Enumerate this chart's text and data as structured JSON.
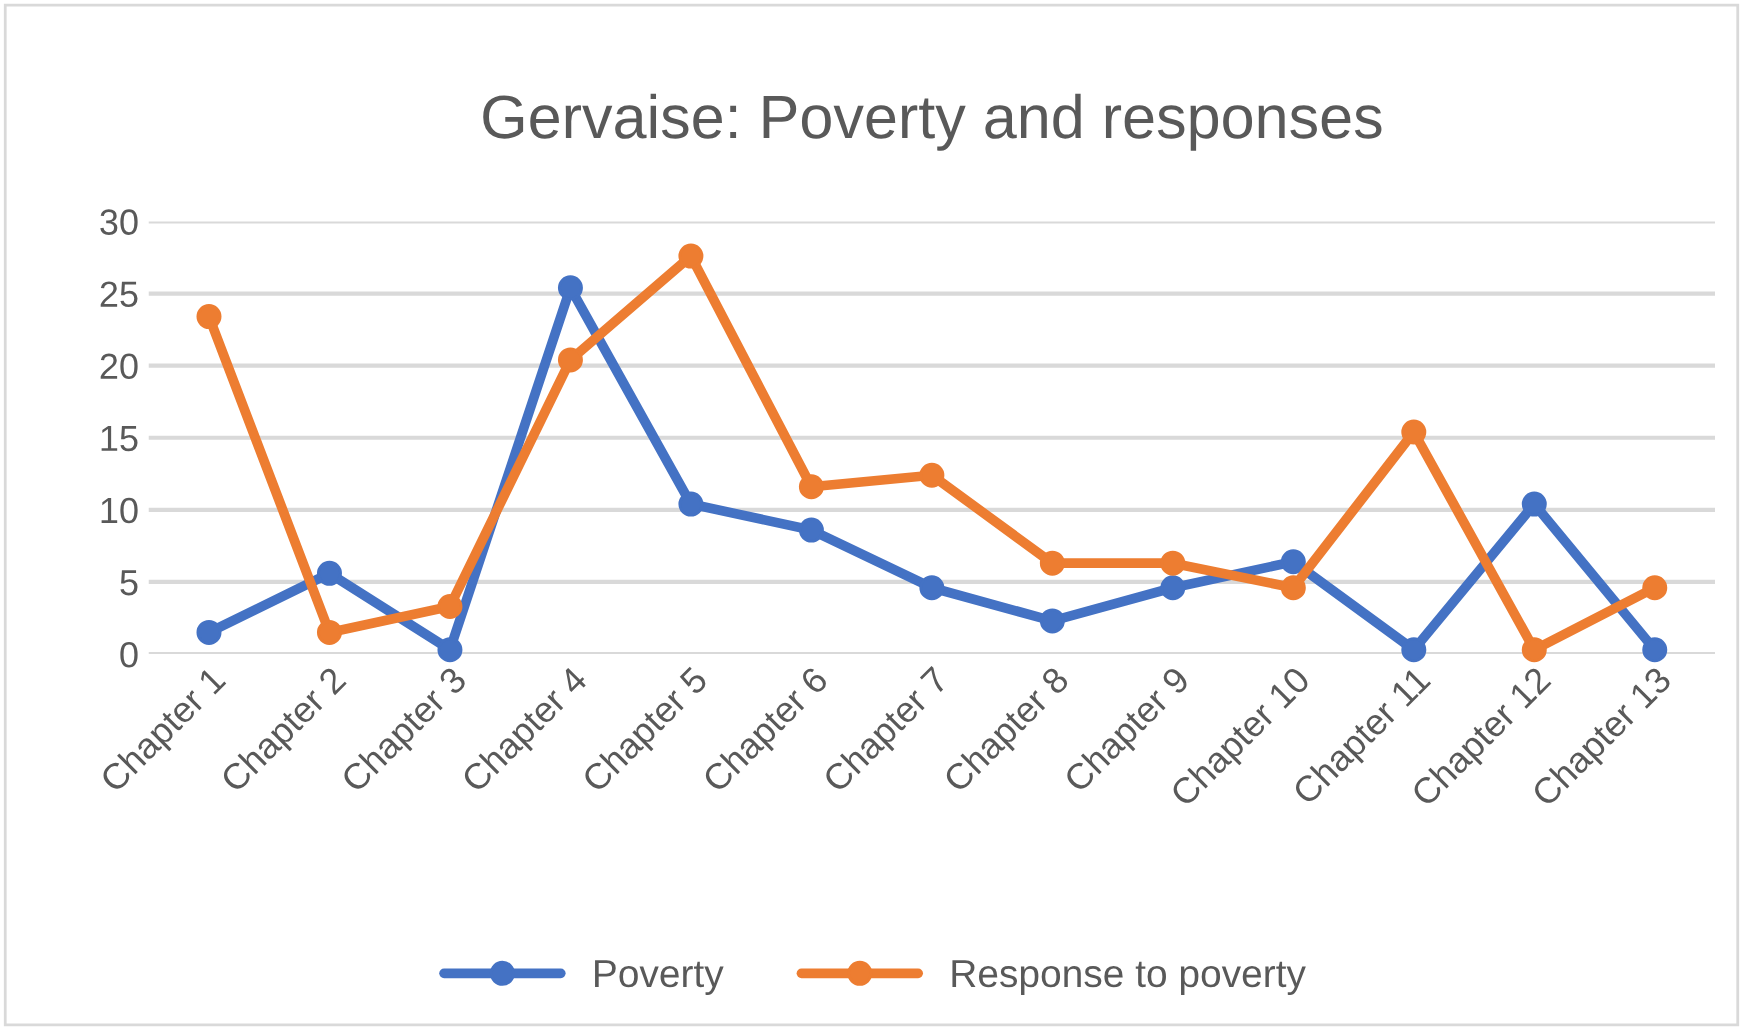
{
  "chart_data": {
    "type": "line",
    "title": "Gervaise: Poverty and responses",
    "categories": [
      "Chapter 1",
      "Chapter 2",
      "Chapter 3",
      "Chapter 4",
      "Chapter 5",
      "Chapter 6",
      "Chapter 7",
      "Chapter 8",
      "Chapter 9",
      "Chapter 10",
      "Chapter 11",
      "Chapter 12",
      "Chapter 13"
    ],
    "series": [
      {
        "name": "Poverty",
        "color": "#4472c4",
        "values": [
          1.5,
          5.6,
          0.3,
          25.4,
          10.4,
          8.6,
          4.6,
          2.3,
          4.6,
          6.4,
          0.3,
          10.4,
          0.3
        ]
      },
      {
        "name": "Response to poverty",
        "color": "#ed7d31",
        "values": [
          23.4,
          1.5,
          3.3,
          20.4,
          27.6,
          11.6,
          12.4,
          6.3,
          6.3,
          4.6,
          15.4,
          0.3,
          4.6
        ]
      }
    ],
    "ylim": [
      0,
      30
    ],
    "yticks": [
      0,
      5,
      10,
      15,
      20,
      25,
      30
    ],
    "grid": "y",
    "legend": "bottom",
    "marker": "circle",
    "line_style": "solid"
  }
}
